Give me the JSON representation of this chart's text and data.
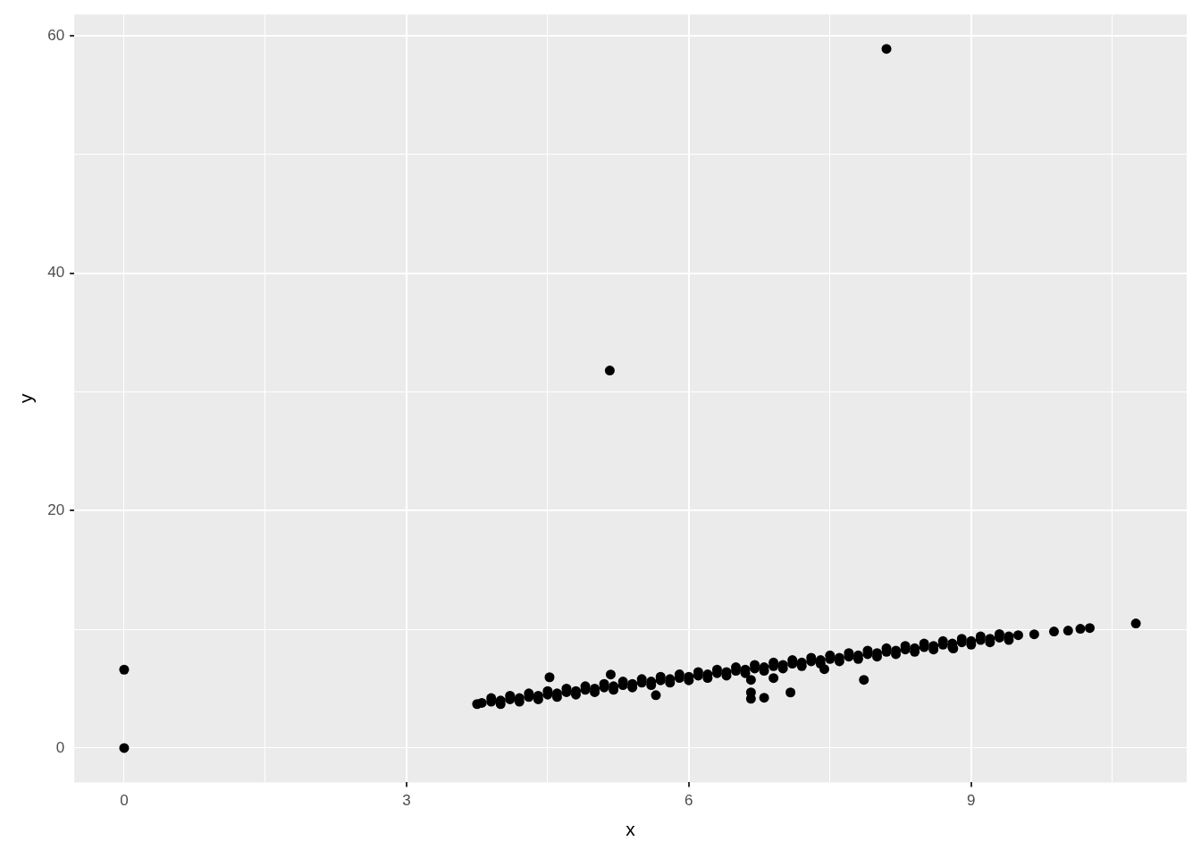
{
  "chart_data": {
    "type": "scatter",
    "xlabel": "x",
    "ylabel": "y",
    "xlim": [
      -0.53,
      11.29
    ],
    "ylim": [
      -2.9,
      61.8
    ],
    "xticks": [
      0,
      {
        "value": 1.5,
        "label": null
      },
      3,
      {
        "value": 4.5,
        "label": null
      },
      6,
      {
        "value": 7.5,
        "label": null
      },
      9,
      {
        "value": 10.5,
        "label": null
      }
    ],
    "yticks": [
      0,
      {
        "value": 10,
        "label": null
      },
      20,
      {
        "value": 30,
        "label": null
      },
      40,
      {
        "value": 50,
        "label": null
      },
      60
    ],
    "grid": true,
    "legend": false,
    "marker": "circle",
    "series": [
      {
        "color": "#000000",
        "x": [
          3.75,
          3.8,
          3.9,
          4.0,
          4.1,
          4.2,
          4.3,
          4.4,
          4.5,
          4.6,
          4.7,
          4.8,
          4.9,
          5.0,
          5.1,
          5.2,
          5.3,
          5.4,
          5.5,
          5.6,
          5.7,
          5.8,
          5.9,
          6.0,
          6.1,
          6.2,
          6.3,
          6.4,
          6.5,
          6.6,
          6.7,
          6.8,
          6.9,
          7.0,
          7.1,
          7.2,
          7.3,
          7.4,
          7.5,
          7.6,
          7.7,
          7.8,
          7.9,
          8.0,
          8.1,
          8.2,
          8.3,
          8.4,
          8.5,
          8.6,
          8.7,
          8.8,
          8.9,
          9.0,
          9.1,
          9.2,
          9.3,
          9.4,
          9.5,
          3.9,
          4.1,
          4.3,
          4.5,
          4.7,
          4.9,
          5.1,
          5.3,
          5.5,
          5.7,
          5.9,
          6.1,
          6.3,
          6.5,
          6.7,
          6.9,
          7.1,
          7.3,
          7.5,
          7.7,
          7.9,
          8.1,
          8.3,
          8.5,
          8.7,
          8.9,
          9.1,
          9.3,
          4.0,
          4.2,
          4.4,
          4.6,
          4.8,
          5.0,
          5.2,
          5.4,
          5.6,
          5.8,
          6.0,
          6.2,
          6.4,
          6.6,
          6.8,
          7.0,
          7.2,
          7.4,
          7.6,
          7.8,
          8.0,
          8.2,
          8.4,
          8.6,
          8.8,
          9.0,
          9.2,
          9.4,
          8.1,
          5.16,
          0,
          0,
          4.52,
          5.17,
          5.65,
          6.66,
          6.66,
          6.66,
          6.8,
          7.08,
          6.9,
          7.44,
          7.86,
          8.81,
          9.67,
          9.88,
          10.03,
          10.16,
          10.26,
          10.75
        ],
        "values": [
          3.7,
          3.8,
          3.9,
          4.0,
          4.1,
          4.2,
          4.3,
          4.4,
          4.5,
          4.6,
          4.7,
          4.8,
          4.9,
          5.0,
          5.1,
          5.2,
          5.3,
          5.4,
          5.5,
          5.6,
          5.7,
          5.8,
          5.9,
          6.0,
          6.1,
          6.2,
          6.3,
          6.4,
          6.5,
          6.6,
          6.7,
          6.8,
          6.9,
          7.0,
          7.1,
          7.2,
          7.3,
          7.4,
          7.5,
          7.6,
          7.7,
          7.8,
          7.9,
          8.0,
          8.1,
          8.2,
          8.3,
          8.4,
          8.5,
          8.6,
          8.7,
          8.8,
          8.9,
          9.0,
          9.1,
          9.2,
          9.3,
          9.4,
          9.5,
          4.2,
          4.4,
          4.6,
          4.8,
          5.0,
          5.2,
          5.4,
          5.6,
          5.8,
          6.0,
          6.2,
          6.4,
          6.6,
          6.8,
          7.0,
          7.2,
          7.4,
          7.6,
          7.8,
          8.0,
          8.2,
          8.4,
          8.6,
          8.8,
          9.0,
          9.2,
          9.4,
          9.6,
          3.7,
          3.9,
          4.1,
          4.3,
          4.5,
          4.7,
          4.9,
          5.1,
          5.3,
          5.5,
          5.7,
          5.9,
          6.1,
          6.3,
          6.5,
          6.7,
          6.9,
          7.1,
          7.3,
          7.5,
          7.7,
          7.9,
          8.1,
          8.3,
          8.5,
          8.7,
          8.9,
          9.1,
          58.9,
          31.8,
          6.6,
          0,
          5.96,
          6.19,
          4.45,
          4.15,
          4.68,
          5.74,
          4.23,
          4.68,
          5.89,
          6.64,
          5.74,
          8.38,
          9.58,
          9.81,
          9.89,
          10.04,
          10.11,
          10.49
        ]
      }
    ]
  }
}
